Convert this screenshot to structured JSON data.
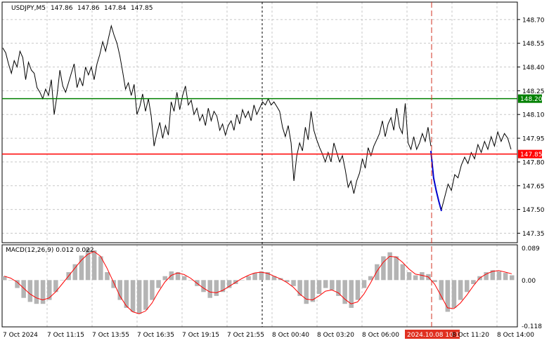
{
  "chart_data": [
    {
      "type": "line",
      "title": "USDJPY,M5",
      "ohlc_readout": [
        "147.86",
        "147.86",
        "147.84",
        "147.85"
      ],
      "ylim": [
        147.29,
        148.81
      ],
      "y_ticks": [
        "148.70",
        "148.55",
        "148.40",
        "148.25",
        "148.10",
        "147.95",
        "147.80",
        "147.65",
        "147.50",
        "147.35"
      ],
      "x_labels": [
        "7 Oct 2024",
        "7 Oct 11:15",
        "7 Oct 13:55",
        "7 Oct 16:35",
        "7 Oct 19:15",
        "7 Oct 21:55",
        "8 Oct 00:40",
        "8 Oct 03:20",
        "8 Oct 06:00",
        "2024.10.08 10:10",
        "8 Oct 11:20",
        "8 Oct 14:00"
      ],
      "x_highlight_label": "2024.10.08 10:10",
      "levels": [
        {
          "value": 148.2,
          "label": "148.20",
          "color": "#008000"
        },
        {
          "value": 147.85,
          "label": "147.85",
          "color": "#ff0000"
        }
      ],
      "series": [
        {
          "color": "#000000",
          "values": [
            148.52,
            148.49,
            148.42,
            148.36,
            148.44,
            148.4,
            148.5,
            148.46,
            148.32,
            148.43,
            148.38,
            148.36,
            148.27,
            148.24,
            148.2,
            148.26,
            148.22,
            148.32,
            148.1,
            148.22,
            148.38,
            148.28,
            148.24,
            148.3,
            148.36,
            148.42,
            148.27,
            148.33,
            148.28,
            148.4,
            148.35,
            148.4,
            148.32,
            148.42,
            148.48,
            148.56,
            148.5,
            148.58,
            148.66,
            148.6,
            148.55,
            148.47,
            148.37,
            148.26,
            148.3,
            148.22,
            148.29,
            148.1,
            148.15,
            148.23,
            148.12,
            148.2,
            148.09,
            147.9,
            147.98,
            148.05,
            147.95,
            148.03,
            147.97,
            148.18,
            148.12,
            148.24,
            148.13,
            148.22,
            148.28,
            148.16,
            148.19,
            148.1,
            148.14,
            148.06,
            148.1,
            148.03,
            148.14,
            148.06,
            148.12,
            148.09,
            148.0,
            148.04,
            147.97,
            148.03,
            148.06,
            148.0,
            148.1,
            148.04,
            148.13,
            148.08,
            148.12,
            148.06,
            148.16,
            148.1,
            148.14,
            148.18,
            148.16,
            148.2,
            148.16,
            148.18,
            148.15,
            148.12,
            148.02,
            147.96,
            148.03,
            147.92,
            147.68,
            147.84,
            147.92,
            147.87,
            148.02,
            147.94,
            148.12,
            148.0,
            147.94,
            147.89,
            147.85,
            147.8,
            147.86,
            147.8,
            147.92,
            147.86,
            147.8,
            147.84,
            147.75,
            147.64,
            147.68,
            147.6,
            147.68,
            147.73,
            147.82,
            147.76,
            147.89,
            147.84,
            147.9,
            147.94,
            147.98,
            148.06,
            147.96,
            148.04,
            148.08,
            148.0,
            148.14,
            148.02,
            147.98,
            148.17,
            147.92,
            147.88,
            147.96,
            147.88,
            147.92,
            147.98,
            147.93,
            148.02,
            147.9
          ],
          "name": ""
        },
        {
          "color": "#0000cc",
          "values": [
            147.87,
            147.7,
            147.62,
            147.55,
            147.49
          ]
        },
        {
          "color": "#000000",
          "values": [
            147.5,
            147.58,
            147.66,
            147.62,
            147.72,
            147.7,
            147.78,
            147.83,
            147.79,
            147.86,
            147.82,
            147.91,
            147.86,
            147.93,
            147.88,
            147.96,
            147.9,
            147.99,
            147.93,
            147.98,
            147.95,
            147.88
          ]
        }
      ]
    },
    {
      "type": "bar",
      "title": "MACD(12,26,9) 0.012 0.022",
      "ylim": [
        -0.118,
        0.089
      ],
      "y_ticks": [
        "0.089",
        "0.00",
        "-0.118"
      ],
      "histogram_color": "#b4b4b4",
      "signal_color": "#ff0000",
      "histogram": [
        0.01,
        0.0,
        -0.02,
        -0.045,
        -0.055,
        -0.06,
        -0.06,
        -0.05,
        -0.03,
        0.0,
        0.02,
        0.04,
        0.062,
        0.08,
        0.075,
        0.06,
        0.02,
        -0.02,
        -0.05,
        -0.07,
        -0.08,
        -0.085,
        -0.075,
        -0.05,
        -0.02,
        0.01,
        0.022,
        0.02,
        0.01,
        0.0,
        -0.015,
        -0.03,
        -0.045,
        -0.04,
        -0.03,
        -0.02,
        -0.01,
        0.0,
        0.01,
        0.018,
        0.022,
        0.02,
        0.01,
        0.005,
        -0.005,
        -0.015,
        -0.04,
        -0.06,
        -0.055,
        -0.035,
        -0.02,
        -0.025,
        -0.04,
        -0.06,
        -0.07,
        -0.05,
        -0.02,
        0.01,
        0.04,
        0.06,
        0.07,
        0.06,
        0.04,
        0.02,
        0.012,
        0.02,
        0.015,
        -0.005,
        -0.05,
        -0.08,
        -0.07,
        -0.05,
        -0.03,
        -0.01,
        0.01,
        0.02,
        0.025,
        0.022,
        0.018,
        0.012
      ],
      "signal": [
        0.01,
        0.005,
        -0.005,
        -0.02,
        -0.035,
        -0.045,
        -0.05,
        -0.045,
        -0.03,
        -0.01,
        0.01,
        0.03,
        0.05,
        0.065,
        0.072,
        0.06,
        0.03,
        -0.005,
        -0.04,
        -0.065,
        -0.08,
        -0.085,
        -0.078,
        -0.058,
        -0.03,
        -0.005,
        0.012,
        0.018,
        0.014,
        0.005,
        -0.008,
        -0.02,
        -0.03,
        -0.032,
        -0.026,
        -0.016,
        -0.006,
        0.004,
        0.012,
        0.018,
        0.02,
        0.017,
        0.01,
        0.003,
        -0.006,
        -0.018,
        -0.035,
        -0.048,
        -0.05,
        -0.04,
        -0.028,
        -0.025,
        -0.032,
        -0.048,
        -0.06,
        -0.055,
        -0.035,
        -0.008,
        0.022,
        0.045,
        0.06,
        0.058,
        0.045,
        0.028,
        0.015,
        0.012,
        0.008,
        -0.01,
        -0.04,
        -0.07,
        -0.072,
        -0.058,
        -0.038,
        -0.015,
        0.005,
        0.015,
        0.022,
        0.024,
        0.02,
        0.016
      ]
    }
  ]
}
